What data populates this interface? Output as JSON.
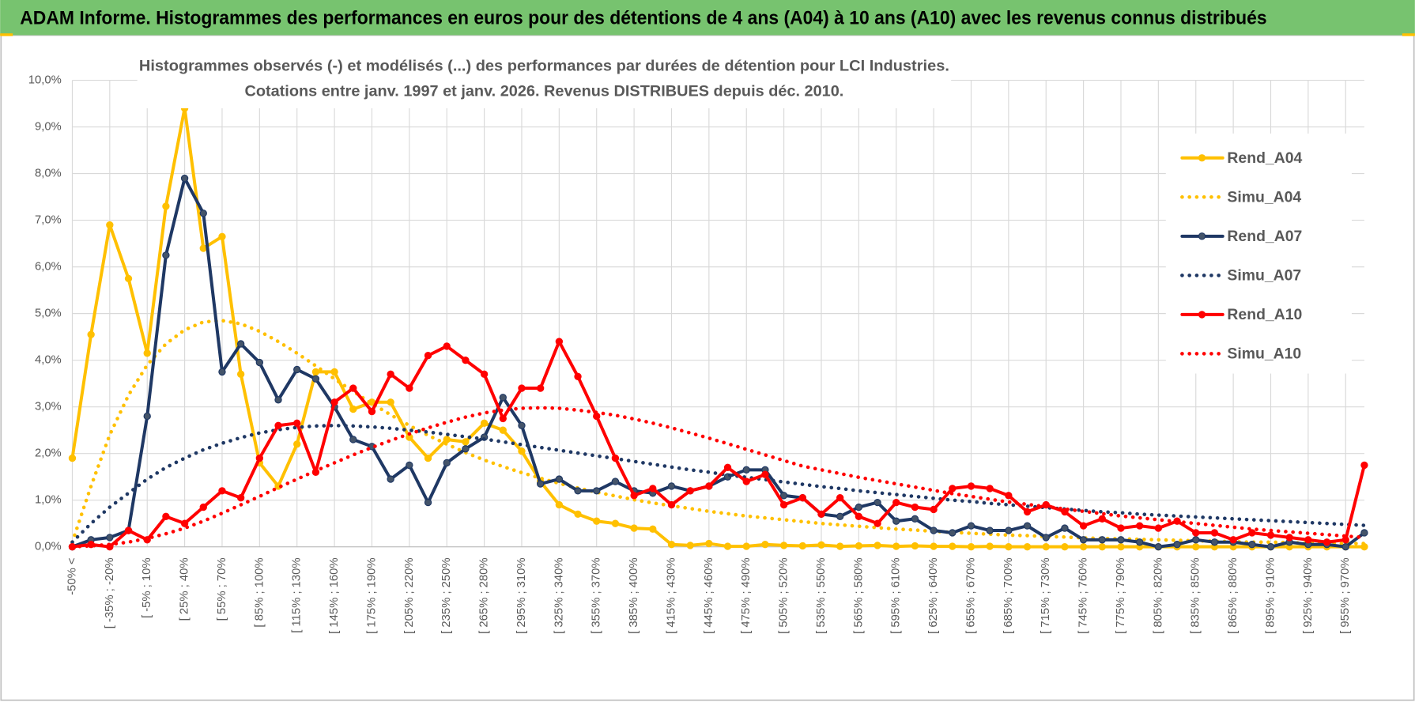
{
  "header": {
    "title": "ADAM Informe. Histogrammes des performances en euros pour des détentions de 4 ans (A04) à 10 ans (A10) avec les revenus connus distribués"
  },
  "chart_data": {
    "type": "line",
    "title": "Histogrammes observés (-) et modélisés (...) des performances par durées de détention pour LCI Industries.",
    "subtitle": "Cotations entre janv. 1997 et janv. 2026. Revenus DISTRIBUES depuis déc. 2010.",
    "categories": [
      "-50% <",
      null,
      "[ -35% ; -20%",
      null,
      "[ -5% ; 10%",
      null,
      "[ 25% ; 40%",
      null,
      "[ 55% ; 70%",
      null,
      "[ 85% ; 100%",
      null,
      "[ 115% ; 130%",
      null,
      "[ 145% ; 160%",
      null,
      "[ 175% ; 190%",
      null,
      "[ 205% ; 220%",
      null,
      "[ 235% ; 250%",
      null,
      "[ 265% ; 280%",
      null,
      "[ 295% ; 310%",
      null,
      "[ 325% ; 340%",
      null,
      "[ 355% ; 370%",
      null,
      "[ 385% ; 400%",
      null,
      "[ 415% ; 430%",
      null,
      "[ 445% ; 460%",
      null,
      "[ 475% ; 490%",
      null,
      "[ 505% ; 520%",
      null,
      "[ 535% ; 550%",
      null,
      "[ 565% ; 580%",
      null,
      "[ 595% ; 610%",
      null,
      "[ 625% ; 640%",
      null,
      "[ 655% ; 670%",
      null,
      "[ 685% ; 700%",
      null,
      "[ 715% ; 730%",
      null,
      "[ 745% ; 760%",
      null,
      "[ 775% ; 790%",
      null,
      "[ 805% ; 820%",
      null,
      "[ 835% ; 850%",
      null,
      "[ 865% ; 880%",
      null,
      "[ 895% ; 910%",
      null,
      "[ 925% ; 940%",
      null,
      "[ 955% ; 970%",
      null
    ],
    "series": [
      {
        "name": "Rend_A04",
        "color": "#FFC000",
        "line_style": "solid",
        "markers": true,
        "values": [
          1.9,
          4.55,
          6.9,
          5.75,
          4.15,
          7.3,
          9.4,
          6.4,
          6.65,
          3.7,
          1.8,
          1.3,
          2.2,
          3.75,
          3.75,
          2.95,
          3.1,
          3.1,
          2.35,
          1.9,
          2.3,
          2.25,
          2.65,
          2.5,
          2.05,
          1.4,
          0.9,
          0.7,
          0.55,
          0.5,
          0.4,
          0.38,
          0.05,
          0.03,
          0.07,
          0.01,
          0.01,
          0.05,
          0.03,
          0.02,
          0.04,
          0.01,
          0.02,
          0.03,
          0.01,
          0.02,
          0.01,
          0.01,
          0,
          0.01,
          0,
          0,
          0,
          0,
          0,
          0,
          0,
          0,
          0,
          0,
          0,
          0,
          0,
          0,
          0,
          0,
          0,
          0,
          0,
          0
        ]
      },
      {
        "name": "Simu_A04",
        "color": "#FFC000",
        "line_style": "dotted",
        "markers": false,
        "values": [
          0.1,
          1.3,
          2.4,
          3.25,
          3.9,
          4.35,
          4.65,
          4.82,
          4.85,
          4.78,
          4.62,
          4.4,
          4.15,
          3.88,
          3.6,
          3.33,
          3.07,
          2.83,
          2.6,
          2.39,
          2.2,
          2.02,
          1.86,
          1.72,
          1.59,
          1.47,
          1.36,
          1.26,
          1.17,
          1.09,
          1.01,
          0.94,
          0.88,
          0.82,
          0.76,
          0.71,
          0.66,
          0.62,
          0.58,
          0.54,
          0.5,
          0.47,
          0.44,
          0.41,
          0.38,
          0.36,
          0.33,
          0.31,
          0.29,
          0.27,
          0.25,
          0.24,
          0.22,
          0.21,
          0.19,
          0.18,
          0.17,
          0.16,
          0.15,
          0.14,
          0.13,
          0.12,
          0.11,
          0.1,
          0.1,
          0.09,
          0.08,
          0.08,
          0.07,
          0.07
        ]
      },
      {
        "name": "Rend_A07",
        "color": "#1F3864",
        "line_style": "solid",
        "markers": true,
        "values": [
          0,
          0.15,
          0.2,
          0.35,
          2.8,
          6.25,
          7.9,
          7.15,
          3.75,
          4.35,
          3.95,
          3.15,
          3.8,
          3.6,
          3.0,
          2.3,
          2.15,
          1.45,
          1.75,
          0.95,
          1.8,
          2.1,
          2.35,
          3.2,
          2.6,
          1.35,
          1.45,
          1.2,
          1.2,
          1.4,
          1.2,
          1.15,
          1.3,
          1.2,
          1.3,
          1.5,
          1.65,
          1.65,
          1.1,
          1.05,
          0.7,
          0.65,
          0.85,
          0.95,
          0.55,
          0.6,
          0.35,
          0.3,
          0.45,
          0.35,
          0.35,
          0.45,
          0.2,
          0.4,
          0.15,
          0.15,
          0.15,
          0.1,
          0,
          0.05,
          0.15,
          0.1,
          0.1,
          0.05,
          0,
          0.1,
          0.05,
          0.05,
          0,
          0.3
        ]
      },
      {
        "name": "Simu_A07",
        "color": "#1F3864",
        "line_style": "dotted",
        "markers": false,
        "values": [
          0.1,
          0.5,
          0.85,
          1.15,
          1.45,
          1.7,
          1.9,
          2.08,
          2.22,
          2.34,
          2.44,
          2.51,
          2.56,
          2.59,
          2.6,
          2.59,
          2.57,
          2.54,
          2.5,
          2.46,
          2.41,
          2.36,
          2.31,
          2.25,
          2.19,
          2.13,
          2.07,
          2.01,
          1.95,
          1.89,
          1.83,
          1.77,
          1.71,
          1.65,
          1.6,
          1.54,
          1.49,
          1.44,
          1.39,
          1.34,
          1.29,
          1.25,
          1.2,
          1.16,
          1.12,
          1.08,
          1.04,
          1.0,
          0.97,
          0.93,
          0.9,
          0.87,
          0.84,
          0.81,
          0.78,
          0.75,
          0.73,
          0.7,
          0.68,
          0.66,
          0.64,
          0.62,
          0.6,
          0.58,
          0.56,
          0.54,
          0.52,
          0.5,
          0.48,
          0.46
        ]
      },
      {
        "name": "Rend_A10",
        "color": "#FF0000",
        "line_style": "solid",
        "markers": true,
        "values": [
          0,
          0.05,
          0,
          0.35,
          0.15,
          0.65,
          0.5,
          0.85,
          1.2,
          1.05,
          1.9,
          2.6,
          2.65,
          1.6,
          3.1,
          3.4,
          2.9,
          3.7,
          3.4,
          4.1,
          4.3,
          4.0,
          3.7,
          2.75,
          3.4,
          3.4,
          4.4,
          3.65,
          2.8,
          1.9,
          1.1,
          1.25,
          0.9,
          1.2,
          1.3,
          1.7,
          1.4,
          1.55,
          0.9,
          1.05,
          0.7,
          1.05,
          0.65,
          0.5,
          0.95,
          0.85,
          0.8,
          1.25,
          1.3,
          1.25,
          1.1,
          0.75,
          0.9,
          0.75,
          0.45,
          0.6,
          0.4,
          0.45,
          0.4,
          0.55,
          0.3,
          0.3,
          0.15,
          0.3,
          0.25,
          0.2,
          0.15,
          0.1,
          0.15,
          1.75
        ]
      },
      {
        "name": "Simu_A10",
        "color": "#FF0000",
        "line_style": "dotted",
        "markers": false,
        "values": [
          0,
          0.02,
          0.05,
          0.1,
          0.18,
          0.28,
          0.4,
          0.55,
          0.72,
          0.9,
          1.08,
          1.27,
          1.45,
          1.63,
          1.8,
          1.97,
          2.13,
          2.28,
          2.42,
          2.55,
          2.67,
          2.78,
          2.87,
          2.93,
          2.97,
          2.98,
          2.97,
          2.93,
          2.88,
          2.82,
          2.74,
          2.65,
          2.55,
          2.44,
          2.33,
          2.21,
          2.09,
          1.97,
          1.85,
          1.73,
          1.65,
          1.57,
          1.49,
          1.42,
          1.35,
          1.28,
          1.21,
          1.14,
          1.08,
          1.02,
          0.96,
          0.91,
          0.86,
          0.81,
          0.76,
          0.71,
          0.66,
          0.62,
          0.58,
          0.54,
          0.5,
          0.46,
          0.42,
          0.38,
          0.35,
          0.32,
          0.29,
          0.26,
          0.23,
          0.2
        ]
      }
    ],
    "ylim": [
      0,
      10
    ],
    "yticks": [
      {
        "value": 0,
        "label": "0,0%"
      },
      {
        "value": 1,
        "label": "1,0%"
      },
      {
        "value": 2,
        "label": "2,0%"
      },
      {
        "value": 3,
        "label": "3,0%"
      },
      {
        "value": 4,
        "label": "4,0%"
      },
      {
        "value": 5,
        "label": "5,0%"
      },
      {
        "value": 6,
        "label": "6,0%"
      },
      {
        "value": 7,
        "label": "7,0%"
      },
      {
        "value": 8,
        "label": "8,0%"
      },
      {
        "value": 9,
        "label": "9,0%"
      },
      {
        "value": 10,
        "label": "10,0%"
      }
    ],
    "grid": true,
    "legend": "right"
  }
}
